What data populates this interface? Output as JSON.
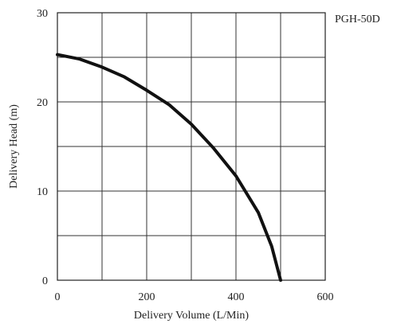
{
  "chart_data": {
    "type": "line",
    "model_label": "PGH-50D",
    "xlabel": "Delivery Volume (L/Min)",
    "ylabel": "Delivery Head (m)",
    "xlim": [
      0,
      600
    ],
    "ylim": [
      0,
      30
    ],
    "x_ticks": [
      0,
      200,
      400,
      600
    ],
    "y_ticks": [
      0,
      10,
      20,
      30
    ],
    "x_gridlines": [
      0,
      100,
      200,
      300,
      400,
      500,
      600
    ],
    "y_gridlines": [
      0,
      5,
      10,
      15,
      20,
      25,
      30
    ],
    "grid": true,
    "series": [
      {
        "color": "#111111",
        "x": [
          0,
          50,
          100,
          150,
          200,
          250,
          300,
          350,
          400,
          450,
          480,
          500
        ],
        "y": [
          25.3,
          24.8,
          23.9,
          22.8,
          21.3,
          19.7,
          17.5,
          14.8,
          11.7,
          7.6,
          3.8,
          0
        ]
      }
    ]
  }
}
